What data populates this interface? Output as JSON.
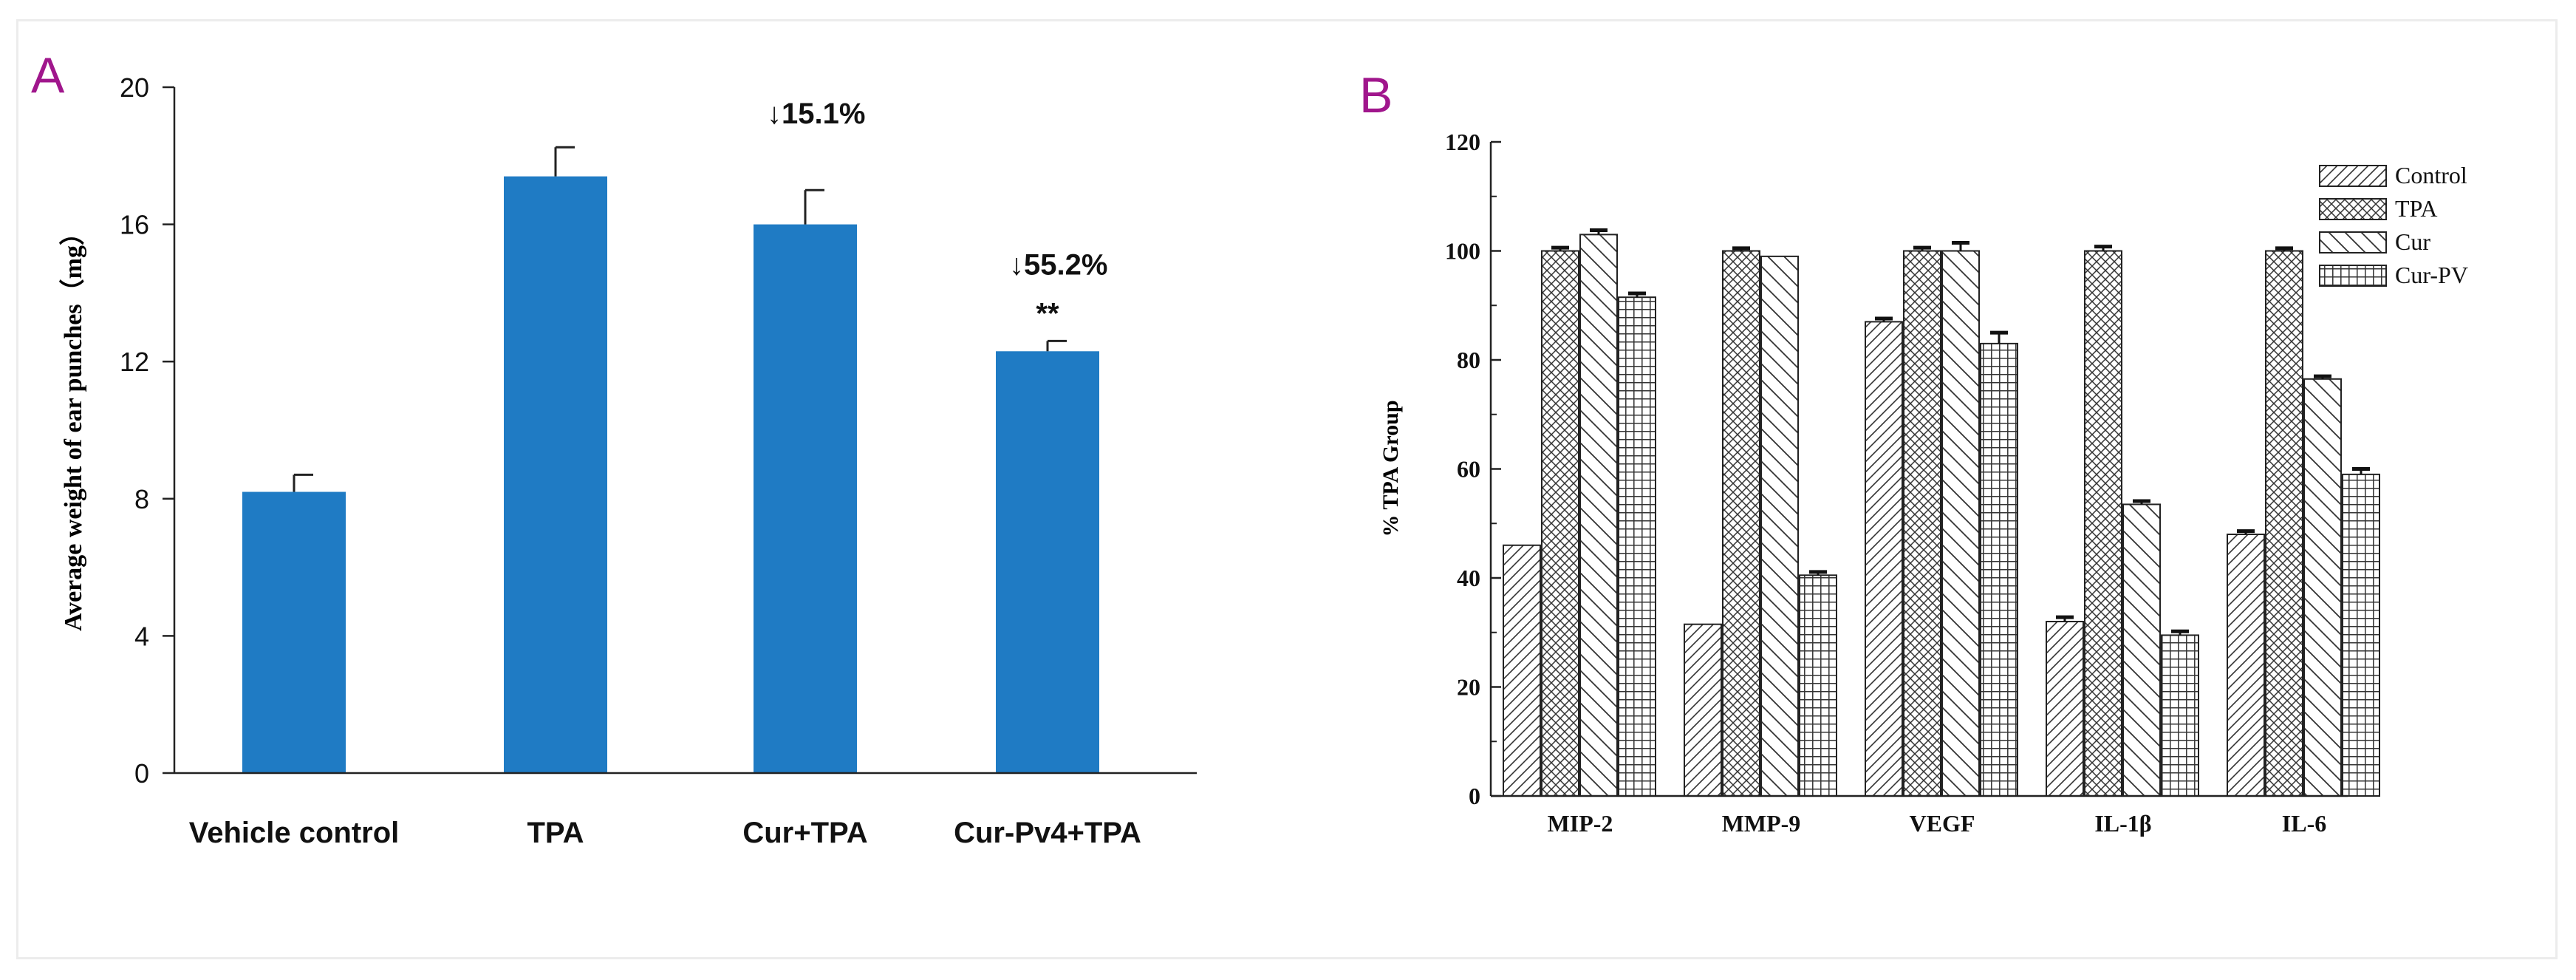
{
  "panel_a": {
    "panel_label": "A",
    "panel_label_color": "#a0168c",
    "bar_color": "#1f7bc4",
    "chart_data": {
      "type": "bar",
      "categories": [
        "Vehicle control",
        "TPA",
        "Cur+TPA",
        "Cur-Pv4+TPA"
      ],
      "values": [
        8.2,
        17.4,
        16.0,
        12.3
      ],
      "errors": [
        0.5,
        0.85,
        1.0,
        0.3
      ],
      "annotations": [
        "",
        "",
        "↓15.1%",
        "↓55.2%"
      ],
      "significance": [
        "",
        "",
        "",
        "**"
      ],
      "title": "",
      "xlabel": "",
      "ylabel": "Average weight of ear punches（mg）",
      "ylim": [
        0,
        20
      ],
      "yticks": [
        0,
        4,
        8,
        12,
        16,
        20
      ]
    }
  },
  "panel_b": {
    "panel_label": "B",
    "panel_label_color": "#a0168c",
    "chart_data": {
      "type": "bar",
      "categories": [
        "MIP-2",
        "MMP-9",
        "VEGF",
        "IL-1β",
        "IL-6"
      ],
      "series": [
        {
          "name": "Control",
          "pattern": "diag",
          "values": [
            46,
            31.5,
            87,
            32,
            48
          ],
          "errors": [
            0,
            0,
            0.6,
            0.8,
            0.6
          ]
        },
        {
          "name": "TPA",
          "pattern": "cross",
          "values": [
            100,
            100,
            100,
            100,
            100
          ],
          "errors": [
            0.6,
            0.5,
            0.6,
            0.8,
            0.5
          ]
        },
        {
          "name": "Cur",
          "pattern": "backdiag",
          "values": [
            103,
            99,
            100,
            53.5,
            76.5
          ],
          "errors": [
            0.8,
            0,
            1.5,
            0.6,
            0.5
          ]
        },
        {
          "name": "Cur-PV",
          "pattern": "grid",
          "values": [
            91.5,
            40.5,
            83,
            29.5,
            59
          ],
          "errors": [
            0.7,
            0.6,
            2,
            0.7,
            1
          ]
        }
      ],
      "title": "",
      "xlabel": "",
      "ylabel": "% TPA  Group",
      "ylim": [
        0,
        120
      ],
      "yticks": [
        0,
        20,
        40,
        60,
        80,
        100,
        120
      ],
      "legend_position": "top-right"
    }
  }
}
